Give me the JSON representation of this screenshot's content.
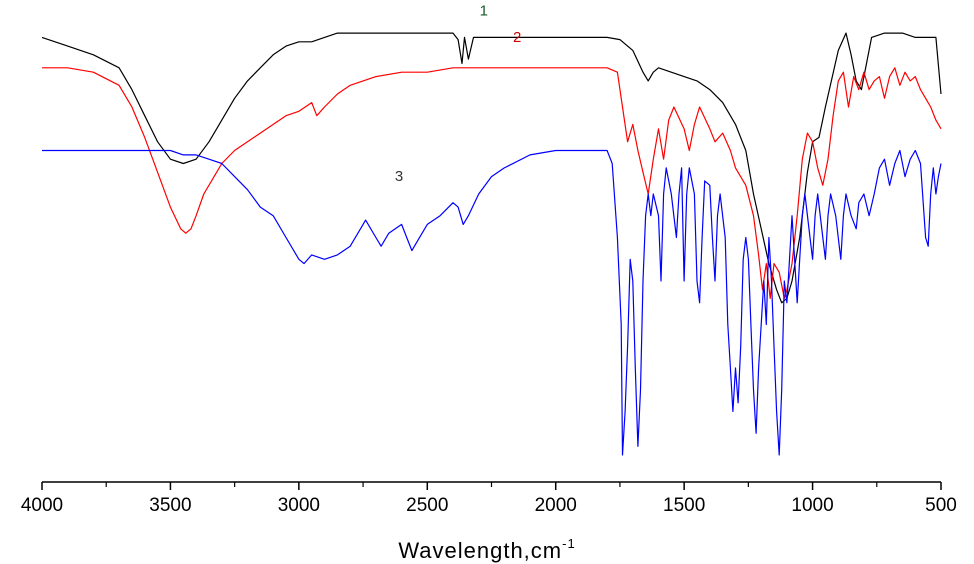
{
  "chart_data": {
    "type": "line",
    "title": "",
    "xlabel": "Wavelength,cm",
    "xlabel_superscript": "-1",
    "ylabel": "",
    "xlim": [
      4000,
      500
    ],
    "ylim": [
      0,
      100
    ],
    "x_reversed": true,
    "x_ticks": [
      4000,
      3500,
      3000,
      2500,
      2000,
      1500,
      1000,
      500
    ],
    "grid": false,
    "show_y_axis": false,
    "series": [
      {
        "name": "1",
        "color": "#000000",
        "label_at": [
          2280,
          101
        ],
        "points": [
          [
            4000,
            96
          ],
          [
            3900,
            94
          ],
          [
            3800,
            92
          ],
          [
            3700,
            89
          ],
          [
            3650,
            84
          ],
          [
            3600,
            78
          ],
          [
            3550,
            72
          ],
          [
            3500,
            68
          ],
          [
            3450,
            67
          ],
          [
            3400,
            68
          ],
          [
            3350,
            72
          ],
          [
            3300,
            77
          ],
          [
            3250,
            82
          ],
          [
            3200,
            86
          ],
          [
            3150,
            89
          ],
          [
            3100,
            92
          ],
          [
            3050,
            94
          ],
          [
            3000,
            95
          ],
          [
            2950,
            95
          ],
          [
            2900,
            96
          ],
          [
            2850,
            97
          ],
          [
            2800,
            97
          ],
          [
            2700,
            97
          ],
          [
            2600,
            97
          ],
          [
            2500,
            97
          ],
          [
            2400,
            97
          ],
          [
            2380,
            95.5
          ],
          [
            2365,
            90
          ],
          [
            2355,
            96
          ],
          [
            2340,
            91
          ],
          [
            2320,
            96
          ],
          [
            2200,
            96
          ],
          [
            2000,
            96
          ],
          [
            1800,
            96
          ],
          [
            1750,
            95.5
          ],
          [
            1700,
            93
          ],
          [
            1660,
            88
          ],
          [
            1640,
            86
          ],
          [
            1620,
            88
          ],
          [
            1600,
            89
          ],
          [
            1500,
            87
          ],
          [
            1450,
            86
          ],
          [
            1400,
            84
          ],
          [
            1350,
            81
          ],
          [
            1300,
            76
          ],
          [
            1260,
            70
          ],
          [
            1230,
            60
          ],
          [
            1200,
            52
          ],
          [
            1170,
            44
          ],
          [
            1140,
            38
          ],
          [
            1120,
            35
          ],
          [
            1100,
            36
          ],
          [
            1080,
            40
          ],
          [
            1050,
            50
          ],
          [
            1020,
            65
          ],
          [
            1000,
            72
          ],
          [
            975,
            73
          ],
          [
            950,
            80
          ],
          [
            900,
            93
          ],
          [
            870,
            97
          ],
          [
            850,
            92
          ],
          [
            830,
            86
          ],
          [
            810,
            84
          ],
          [
            790,
            90
          ],
          [
            770,
            96
          ],
          [
            720,
            97
          ],
          [
            650,
            97
          ],
          [
            600,
            96
          ],
          [
            520,
            96
          ],
          [
            500,
            83
          ]
        ]
      },
      {
        "name": "2",
        "color": "#ff0000",
        "label_at": [
          2150,
          95
        ],
        "points": [
          [
            4000,
            89
          ],
          [
            3900,
            89
          ],
          [
            3800,
            88
          ],
          [
            3700,
            85
          ],
          [
            3650,
            80
          ],
          [
            3600,
            73
          ],
          [
            3550,
            65
          ],
          [
            3500,
            57
          ],
          [
            3460,
            52
          ],
          [
            3440,
            51
          ],
          [
            3420,
            52
          ],
          [
            3400,
            55
          ],
          [
            3370,
            60
          ],
          [
            3330,
            64
          ],
          [
            3300,
            67
          ],
          [
            3250,
            70
          ],
          [
            3200,
            72
          ],
          [
            3150,
            74
          ],
          [
            3100,
            76
          ],
          [
            3050,
            78
          ],
          [
            3000,
            79
          ],
          [
            2950,
            81
          ],
          [
            2930,
            78
          ],
          [
            2900,
            80
          ],
          [
            2850,
            83
          ],
          [
            2800,
            85
          ],
          [
            2700,
            87
          ],
          [
            2600,
            88
          ],
          [
            2500,
            88
          ],
          [
            2400,
            89
          ],
          [
            2200,
            89
          ],
          [
            2000,
            89
          ],
          [
            1800,
            89
          ],
          [
            1760,
            88
          ],
          [
            1740,
            80
          ],
          [
            1720,
            72
          ],
          [
            1700,
            76
          ],
          [
            1680,
            70
          ],
          [
            1660,
            65
          ],
          [
            1640,
            60
          ],
          [
            1620,
            68
          ],
          [
            1600,
            75
          ],
          [
            1580,
            68
          ],
          [
            1560,
            77
          ],
          [
            1540,
            80
          ],
          [
            1500,
            75
          ],
          [
            1480,
            70
          ],
          [
            1460,
            76
          ],
          [
            1440,
            80
          ],
          [
            1400,
            75
          ],
          [
            1380,
            72
          ],
          [
            1350,
            74
          ],
          [
            1320,
            70
          ],
          [
            1300,
            66
          ],
          [
            1260,
            62
          ],
          [
            1230,
            55
          ],
          [
            1210,
            46
          ],
          [
            1195,
            38
          ],
          [
            1180,
            44
          ],
          [
            1165,
            36
          ],
          [
            1150,
            44
          ],
          [
            1130,
            42
          ],
          [
            1110,
            36
          ],
          [
            1100,
            38
          ],
          [
            1080,
            44
          ],
          [
            1060,
            55
          ],
          [
            1040,
            68
          ],
          [
            1020,
            74
          ],
          [
            1000,
            72
          ],
          [
            980,
            66
          ],
          [
            960,
            62
          ],
          [
            940,
            68
          ],
          [
            920,
            78
          ],
          [
            900,
            86
          ],
          [
            880,
            88
          ],
          [
            860,
            80
          ],
          [
            840,
            87
          ],
          [
            820,
            84
          ],
          [
            800,
            88
          ],
          [
            780,
            84
          ],
          [
            760,
            86
          ],
          [
            740,
            87
          ],
          [
            720,
            82
          ],
          [
            700,
            87
          ],
          [
            680,
            89
          ],
          [
            660,
            85
          ],
          [
            640,
            88
          ],
          [
            620,
            86
          ],
          [
            600,
            87
          ],
          [
            580,
            84
          ],
          [
            560,
            82
          ],
          [
            540,
            80
          ],
          [
            520,
            77
          ],
          [
            500,
            75
          ]
        ]
      },
      {
        "name": "3",
        "color": "#0000ff",
        "label_at": [
          2610,
          63
        ],
        "points": [
          [
            4000,
            70
          ],
          [
            3900,
            70
          ],
          [
            3800,
            70
          ],
          [
            3700,
            70
          ],
          [
            3600,
            70
          ],
          [
            3500,
            70
          ],
          [
            3450,
            69
          ],
          [
            3400,
            69
          ],
          [
            3350,
            68
          ],
          [
            3300,
            67
          ],
          [
            3250,
            64
          ],
          [
            3200,
            61
          ],
          [
            3150,
            57
          ],
          [
            3100,
            55
          ],
          [
            3050,
            50
          ],
          [
            3000,
            45
          ],
          [
            2980,
            44
          ],
          [
            2950,
            46
          ],
          [
            2900,
            45
          ],
          [
            2850,
            46
          ],
          [
            2800,
            48
          ],
          [
            2760,
            52
          ],
          [
            2740,
            54
          ],
          [
            2700,
            50
          ],
          [
            2680,
            48
          ],
          [
            2650,
            51
          ],
          [
            2600,
            53
          ],
          [
            2580,
            50
          ],
          [
            2560,
            47
          ],
          [
            2540,
            49
          ],
          [
            2500,
            53
          ],
          [
            2450,
            55
          ],
          [
            2400,
            58
          ],
          [
            2380,
            57
          ],
          [
            2360,
            53
          ],
          [
            2340,
            55
          ],
          [
            2300,
            60
          ],
          [
            2250,
            64
          ],
          [
            2200,
            66
          ],
          [
            2100,
            69
          ],
          [
            2000,
            70
          ],
          [
            1900,
            70
          ],
          [
            1800,
            70
          ],
          [
            1780,
            67
          ],
          [
            1760,
            50
          ],
          [
            1745,
            30
          ],
          [
            1740,
            0
          ],
          [
            1730,
            10
          ],
          [
            1720,
            25
          ],
          [
            1710,
            45
          ],
          [
            1700,
            40
          ],
          [
            1690,
            20
          ],
          [
            1680,
            2
          ],
          [
            1670,
            15
          ],
          [
            1660,
            40
          ],
          [
            1650,
            55
          ],
          [
            1640,
            60
          ],
          [
            1630,
            55
          ],
          [
            1620,
            60
          ],
          [
            1600,
            55
          ],
          [
            1590,
            40
          ],
          [
            1580,
            60
          ],
          [
            1570,
            66
          ],
          [
            1550,
            60
          ],
          [
            1530,
            50
          ],
          [
            1520,
            60
          ],
          [
            1510,
            66
          ],
          [
            1500,
            40
          ],
          [
            1490,
            60
          ],
          [
            1480,
            66
          ],
          [
            1460,
            60
          ],
          [
            1450,
            40
          ],
          [
            1440,
            35
          ],
          [
            1430,
            50
          ],
          [
            1420,
            63
          ],
          [
            1400,
            62
          ],
          [
            1390,
            50
          ],
          [
            1380,
            40
          ],
          [
            1370,
            55
          ],
          [
            1360,
            60
          ],
          [
            1340,
            50
          ],
          [
            1330,
            30
          ],
          [
            1320,
            20
          ],
          [
            1310,
            10
          ],
          [
            1300,
            20
          ],
          [
            1290,
            12
          ],
          [
            1280,
            25
          ],
          [
            1270,
            45
          ],
          [
            1260,
            50
          ],
          [
            1250,
            45
          ],
          [
            1240,
            30
          ],
          [
            1230,
            15
          ],
          [
            1220,
            5
          ],
          [
            1210,
            20
          ],
          [
            1200,
            30
          ],
          [
            1190,
            40
          ],
          [
            1180,
            30
          ],
          [
            1170,
            50
          ],
          [
            1160,
            40
          ],
          [
            1150,
            25
          ],
          [
            1140,
            10
          ],
          [
            1130,
            0
          ],
          [
            1120,
            15
          ],
          [
            1110,
            40
          ],
          [
            1100,
            35
          ],
          [
            1090,
            45
          ],
          [
            1080,
            55
          ],
          [
            1070,
            45
          ],
          [
            1060,
            35
          ],
          [
            1050,
            45
          ],
          [
            1040,
            55
          ],
          [
            1030,
            60
          ],
          [
            1010,
            50
          ],
          [
            1000,
            45
          ],
          [
            990,
            55
          ],
          [
            980,
            60
          ],
          [
            960,
            50
          ],
          [
            950,
            45
          ],
          [
            940,
            55
          ],
          [
            930,
            60
          ],
          [
            910,
            55
          ],
          [
            890,
            45
          ],
          [
            880,
            55
          ],
          [
            870,
            60
          ],
          [
            850,
            55
          ],
          [
            830,
            52
          ],
          [
            820,
            58
          ],
          [
            800,
            60
          ],
          [
            780,
            55
          ],
          [
            760,
            60
          ],
          [
            740,
            66
          ],
          [
            720,
            68
          ],
          [
            700,
            62
          ],
          [
            680,
            67
          ],
          [
            660,
            70
          ],
          [
            640,
            64
          ],
          [
            620,
            68
          ],
          [
            600,
            70
          ],
          [
            580,
            67
          ],
          [
            560,
            50
          ],
          [
            550,
            48
          ],
          [
            540,
            60
          ],
          [
            530,
            66
          ],
          [
            520,
            60
          ],
          [
            510,
            64
          ],
          [
            500,
            67
          ]
        ]
      }
    ]
  }
}
